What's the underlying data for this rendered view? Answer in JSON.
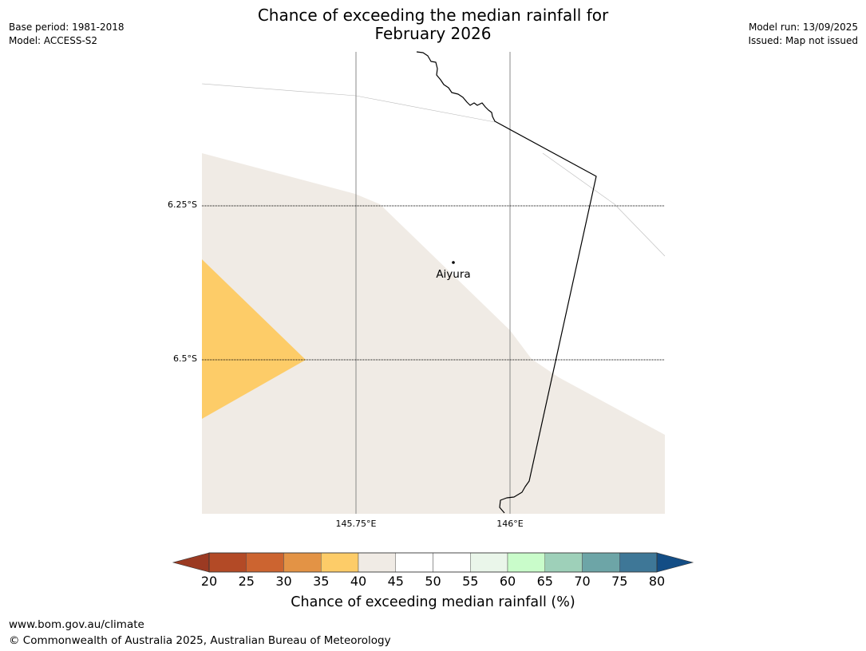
{
  "header": {
    "title_line1": "Chance of exceeding the median rainfall for",
    "title_line2": "February 2026",
    "base_period": "Base period: 1981-2018",
    "model": "Model: ACCESS-S2",
    "model_run": "Model run: 13/09/2025",
    "issued": "Issued: Map not issued"
  },
  "map": {
    "lat_labels": [
      "6.25°S",
      "6.5°S"
    ],
    "lon_labels": [
      "145.75°E",
      "146°E"
    ],
    "place": "Aiyura",
    "category_colors": {
      "35-40": "#fdcc68",
      "40-45": "#f0ebe5"
    }
  },
  "colorbar": {
    "ticks": [
      "20",
      "25",
      "30",
      "35",
      "40",
      "45",
      "50",
      "55",
      "60",
      "65",
      "70",
      "75",
      "80"
    ],
    "colors": [
      "#b34a26",
      "#cc6430",
      "#e39345",
      "#fdcc68",
      "#f0ebe5",
      "#ffffff",
      "#ffffff",
      "#eaf6ea",
      "#c9fcca",
      "#9ed0b9",
      "#6da5a7",
      "#3e7797"
    ],
    "under_color": "#9b3a22",
    "over_color": "#134d85",
    "label": "Chance of exceeding median rainfall (%)"
  },
  "footer": {
    "url": "www.bom.gov.au/climate",
    "copyright": "© Commonwealth of Australia 2025, Australian Bureau of Meteorology"
  }
}
